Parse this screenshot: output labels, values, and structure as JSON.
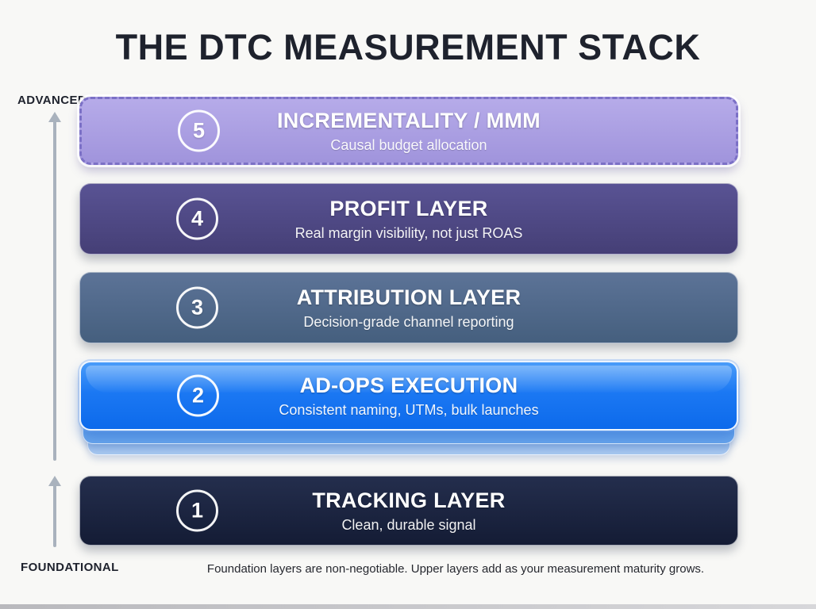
{
  "title": "THE DTC MEASUREMENT STACK",
  "axis": {
    "top_label": "ADVANCED",
    "bottom_label": "FOUNDATIONAL"
  },
  "layers": [
    {
      "number": "5",
      "title": "INCREMENTALITY / MMM",
      "subtitle": "Causal budget allocation",
      "color": "#aba0e2",
      "border_style": "dashed"
    },
    {
      "number": "4",
      "title": "PROFIT LAYER",
      "subtitle": "Real margin visibility, not just ROAS",
      "color": "#4e4884"
    },
    {
      "number": "3",
      "title": "ATTRIBUTION LAYER",
      "subtitle": "Decision-grade channel reporting",
      "color": "#526b8f"
    },
    {
      "number": "2",
      "title": "AD-OPS EXECUTION",
      "subtitle": "Consistent naming, UTMs, bulk launches",
      "color": "#1778f2",
      "highlighted": true
    },
    {
      "number": "1",
      "title": "TRACKING LAYER",
      "subtitle": "Clean, durable signal",
      "color": "#1b2440"
    }
  ],
  "footnote": "Foundation layers are non-negotiable. Upper layers add as your measurement maturity grows."
}
